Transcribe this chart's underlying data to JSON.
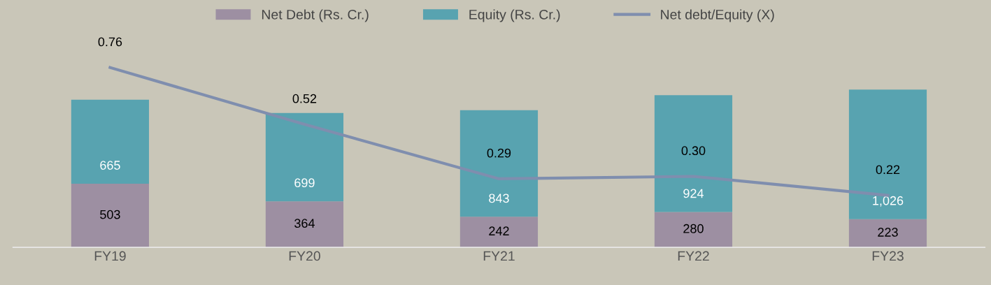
{
  "chart_data": {
    "type": "bar",
    "stacked": true,
    "categories": [
      "FY19",
      "FY20",
      "FY21",
      "FY22",
      "FY23"
    ],
    "series": [
      {
        "name": "Net Debt (Rs. Cr.)",
        "color": "#9d8fa2",
        "values": [
          503,
          364,
          242,
          280,
          223
        ],
        "value_labels": [
          "503",
          "364",
          "242",
          "280",
          "223"
        ]
      },
      {
        "name": "Equity (Rs. Cr.)",
        "color": "#58a3b0",
        "values": [
          665,
          699,
          843,
          924,
          1026
        ],
        "value_labels": [
          "665",
          "699",
          "843",
          "924",
          "1,026"
        ]
      },
      {
        "name": "Net debt/Equity (X)",
        "type": "line",
        "axis": "y2",
        "color": "#7f8eae",
        "values": [
          0.76,
          0.52,
          0.29,
          0.3,
          0.22
        ],
        "value_labels": [
          "0.76",
          "0.52",
          "0.29",
          "0.30",
          "0.22"
        ]
      }
    ],
    "tick_labels": "x",
    "legend": "top",
    "grid": false
  }
}
